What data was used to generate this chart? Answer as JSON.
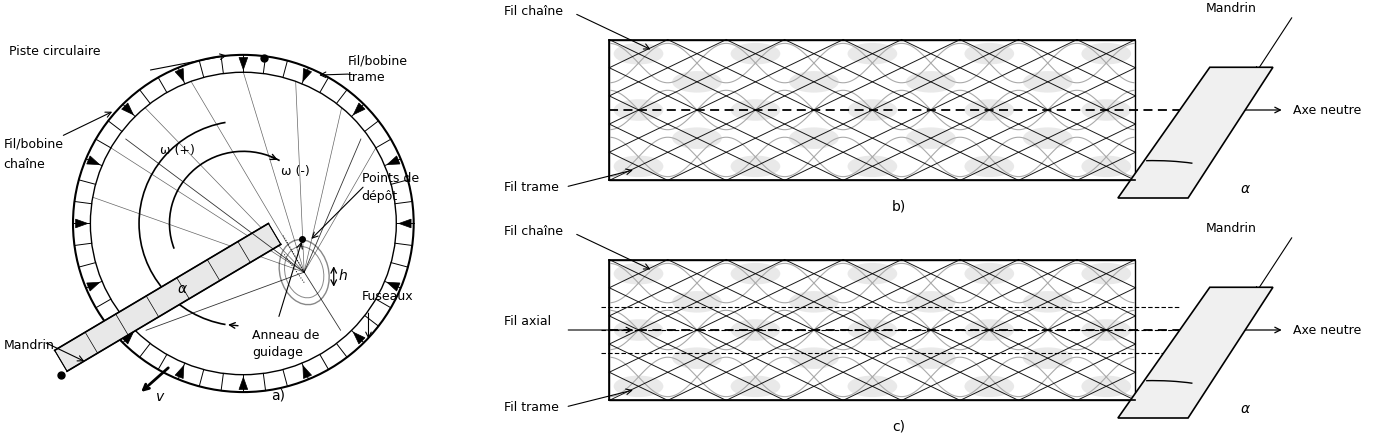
{
  "fig_width": 13.81,
  "fig_height": 4.4,
  "dpi": 100,
  "bg_color": "#ffffff",
  "text_color": "#000000",
  "line_color": "#000000",
  "gray_braid": "#d8d8d8",
  "fontsize_label": 9,
  "fontsize_sub": 10,
  "panel_a_xlim": [
    -1.35,
    1.45
  ],
  "panel_a_ylim": [
    -1.05,
    1.1
  ],
  "panel_bc_xlim": [
    -0.05,
    1.0
  ],
  "panel_bc_ylim": [
    0.0,
    1.0
  ],
  "n_bobbins": 16,
  "n_ticks": 48
}
